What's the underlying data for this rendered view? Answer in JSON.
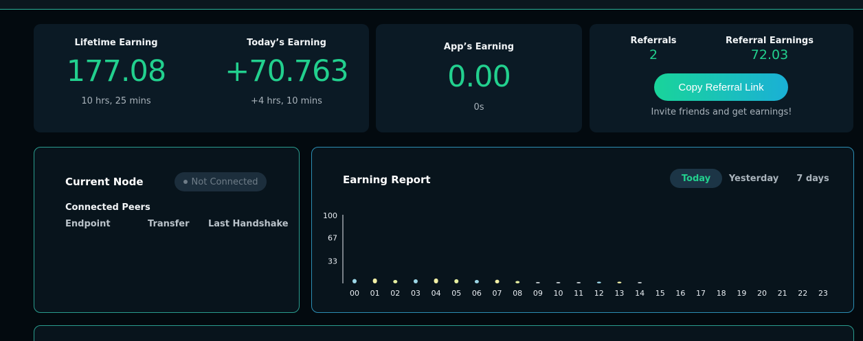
{
  "stats": {
    "lifetime": {
      "label": "Lifetime Earning",
      "value": "177.08",
      "sub": "10 hrs, 25 mins"
    },
    "today": {
      "label": "Today’s Earning",
      "value": "+70.763",
      "sub": "+4 hrs, 10 mins"
    },
    "app": {
      "label": "App’s Earning",
      "value": "0.00",
      "sub": "0s"
    }
  },
  "referral": {
    "count_label": "Referrals",
    "count": "2",
    "earnings_label": "Referral Earnings",
    "earnings": "72.03",
    "copy_button": "Copy Referral Link",
    "invite_text": "Invite friends and get earnings!"
  },
  "node": {
    "title": "Current Node",
    "status": "Not Connected",
    "peers_title": "Connected Peers",
    "columns": [
      "Endpoint",
      "Transfer",
      "Last Handshake"
    ]
  },
  "report": {
    "title": "Earning Report",
    "tabs": [
      "Today",
      "Yesterday",
      "7 days"
    ],
    "active_tab": "Today"
  },
  "colors": {
    "accent_green": "#22d08e",
    "accent_blue": "#1ab0d6",
    "card_bg": "#0b1a25",
    "border_teal": "#2a9d8f"
  },
  "chart_data": {
    "type": "bar",
    "categories": [
      "00",
      "01",
      "02",
      "03",
      "04",
      "05",
      "06",
      "07",
      "08",
      "09",
      "10",
      "11",
      "12",
      "13",
      "14",
      "15",
      "16",
      "17",
      "18",
      "19",
      "20",
      "21",
      "22",
      "23"
    ],
    "values": [
      6.5,
      7.2,
      5.1,
      6.0,
      7.2,
      6.2,
      5.0,
      5.4,
      3.5,
      0.8,
      0.6,
      1.2,
      2.5,
      2.5,
      0.5,
      0,
      0,
      0,
      0,
      0,
      0,
      0,
      0,
      0
    ],
    "colors": [
      "#9cd6e6",
      "#f2f0a6",
      "#e6efa0",
      "#9cd6e6",
      "#f2f0a6",
      "#e6efa0",
      "#9cd6e6",
      "#f2f0a6",
      "#e6efa0",
      "#c0c8cc",
      "#c0c8cc",
      "#c0c8cc",
      "#9cd6e6",
      "#f2f0a6",
      "#c0c8cc",
      "#c0c8cc",
      "#c0c8cc",
      "#c0c8cc",
      "#c0c8cc",
      "#c0c8cc",
      "#c0c8cc",
      "#c0c8cc",
      "#c0c8cc",
      "#c0c8cc"
    ],
    "yticks": [
      33,
      67,
      100
    ],
    "ylim": [
      0,
      100
    ],
    "title": "",
    "xlabel": "",
    "ylabel": ""
  }
}
